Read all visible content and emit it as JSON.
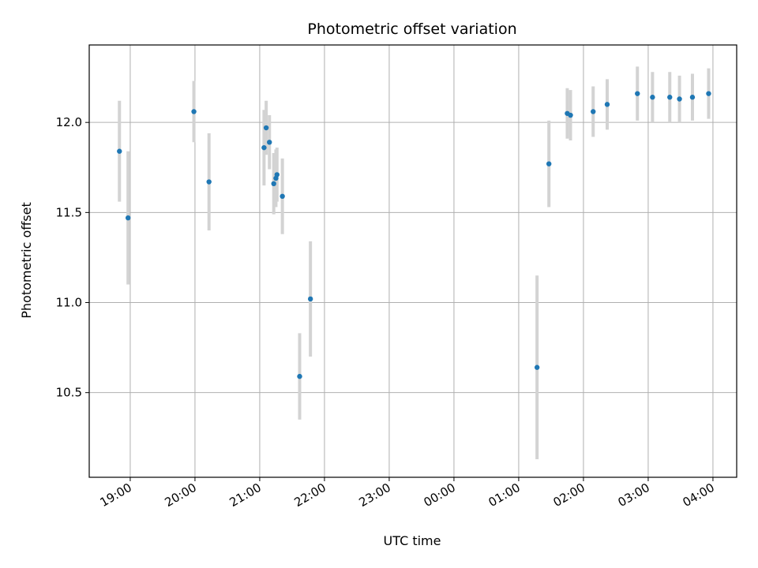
{
  "chart_data": {
    "type": "scatter",
    "title": "Photometric offset variation",
    "xlabel": "UTC time",
    "ylabel": "Photometric offset",
    "x_tick_labels": [
      "19:00",
      "20:00",
      "21:00",
      "22:00",
      "23:00",
      "00:00",
      "01:00",
      "02:00",
      "03:00",
      "04:00"
    ],
    "y_tick_labels": [
      "10.5",
      "11.0",
      "11.5",
      "12.0"
    ],
    "xlim": [
      "18:22",
      "04:22"
    ],
    "ylim": [
      10.03,
      12.43
    ],
    "grid": true,
    "colors": {
      "point": "#1f77b4",
      "errorbar": "#d3d3d3",
      "grid": "#b0b0b0"
    },
    "points": [
      {
        "x": "18:50",
        "y": 11.84,
        "err": 0.28
      },
      {
        "x": "18:58",
        "y": 11.47,
        "err": 0.37
      },
      {
        "x": "19:59",
        "y": 12.06,
        "err": 0.17
      },
      {
        "x": "20:13",
        "y": 11.67,
        "err": 0.27
      },
      {
        "x": "21:04",
        "y": 11.86,
        "err": 0.21
      },
      {
        "x": "21:06",
        "y": 11.97,
        "err": 0.15
      },
      {
        "x": "21:09",
        "y": 11.89,
        "err": 0.15
      },
      {
        "x": "21:13",
        "y": 11.66,
        "err": 0.17
      },
      {
        "x": "21:15",
        "y": 11.69,
        "err": 0.16
      },
      {
        "x": "21:16",
        "y": 11.71,
        "err": 0.15
      },
      {
        "x": "21:21",
        "y": 11.59,
        "err": 0.21
      },
      {
        "x": "21:37",
        "y": 10.59,
        "err": 0.24
      },
      {
        "x": "21:47",
        "y": 11.02,
        "err": 0.32
      },
      {
        "x": "01:17",
        "y": 10.64,
        "err": 0.51
      },
      {
        "x": "01:28",
        "y": 11.77,
        "err": 0.24
      },
      {
        "x": "01:45",
        "y": 12.05,
        "err": 0.14
      },
      {
        "x": "01:48",
        "y": 12.04,
        "err": 0.14
      },
      {
        "x": "02:09",
        "y": 12.06,
        "err": 0.14
      },
      {
        "x": "02:22",
        "y": 12.1,
        "err": 0.14
      },
      {
        "x": "02:50",
        "y": 12.16,
        "err": 0.15
      },
      {
        "x": "03:04",
        "y": 12.14,
        "err": 0.14
      },
      {
        "x": "03:20",
        "y": 12.14,
        "err": 0.14
      },
      {
        "x": "03:29",
        "y": 12.13,
        "err": 0.13
      },
      {
        "x": "03:41",
        "y": 12.14,
        "err": 0.13
      },
      {
        "x": "03:56",
        "y": 12.16,
        "err": 0.14
      }
    ]
  }
}
